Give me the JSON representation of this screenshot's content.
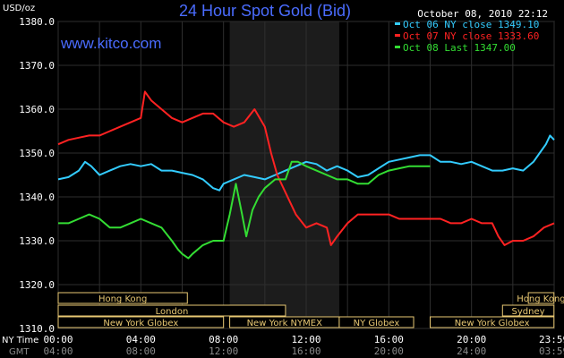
{
  "header": {
    "title": "24 Hour Spot Gold (Bid)",
    "brand": "www.kitco.com",
    "unit": "USD/oz",
    "datetime": "October 08, 2010 22:12"
  },
  "axis": {
    "time_label_ny": "NY Time",
    "time_label_gmt": "GMT"
  },
  "markets": [
    {
      "name": "Hong Kong",
      "row": 0,
      "start": 0.0,
      "end": 6.25
    },
    {
      "name": "Hong Kong",
      "row": 0,
      "start": 22.75,
      "end": 23.99
    },
    {
      "name": "London",
      "row": 1,
      "start": 0.0,
      "end": 11.0
    },
    {
      "name": "Sydney",
      "row": 1,
      "start": 21.5,
      "end": 23.99
    },
    {
      "name": "New York Globex",
      "row": 2,
      "start": 0.0,
      "end": 8.0
    },
    {
      "name": "New York NYMEX",
      "row": 2,
      "start": 8.3,
      "end": 13.6
    },
    {
      "name": "NY Globex",
      "row": 2,
      "start": 13.6,
      "end": 17.2
    },
    {
      "name": "New York Globex",
      "row": 2,
      "start": 18.0,
      "end": 23.99
    }
  ],
  "chart_data": {
    "type": "line",
    "title": "24 Hour Spot Gold (Bid)",
    "ylabel": "USD/oz",
    "ylim": [
      1310,
      1380
    ],
    "xlim": [
      0,
      24
    ],
    "y_ticks": [
      "1310.0",
      "1320.0",
      "1330.0",
      "1340.0",
      "1350.0",
      "1360.0",
      "1370.0",
      "1380.0"
    ],
    "y_tick_values": [
      1310,
      1320,
      1330,
      1340,
      1350,
      1360,
      1370,
      1380
    ],
    "x_ticks_ny": [
      "00:00",
      "04:00",
      "08:00",
      "12:00",
      "16:00",
      "20:00",
      "23:59"
    ],
    "x_ticks_gmt": [
      "04:00",
      "08:00",
      "12:00",
      "16:00",
      "20:00",
      "24:00",
      "03:59"
    ],
    "x_tick_values": [
      0,
      4,
      8,
      12,
      16,
      20,
      23.98
    ],
    "shaded_region": [
      8.3,
      13.6
    ],
    "grid": true,
    "legend_position": "top-right",
    "series": [
      {
        "name": "Oct 06 NY close 1349.10",
        "color": "#33ccff",
        "points": [
          [
            0,
            1344
          ],
          [
            0.5,
            1344.5
          ],
          [
            1.0,
            1346
          ],
          [
            1.3,
            1348
          ],
          [
            1.6,
            1347
          ],
          [
            2.0,
            1345
          ],
          [
            2.5,
            1346
          ],
          [
            3.0,
            1347
          ],
          [
            3.5,
            1347.5
          ],
          [
            4.0,
            1347
          ],
          [
            4.5,
            1347.5
          ],
          [
            5.0,
            1346
          ],
          [
            5.5,
            1346
          ],
          [
            6.0,
            1345.5
          ],
          [
            6.5,
            1345
          ],
          [
            7.0,
            1344
          ],
          [
            7.5,
            1342
          ],
          [
            7.8,
            1341.5
          ],
          [
            8.0,
            1343
          ],
          [
            8.5,
            1344
          ],
          [
            9.0,
            1345
          ],
          [
            9.5,
            1344.5
          ],
          [
            10.0,
            1344
          ],
          [
            10.5,
            1345
          ],
          [
            11.0,
            1346
          ],
          [
            11.5,
            1347
          ],
          [
            12.0,
            1348
          ],
          [
            12.5,
            1347.5
          ],
          [
            13.0,
            1346
          ],
          [
            13.5,
            1347
          ],
          [
            14.0,
            1346
          ],
          [
            14.5,
            1344.5
          ],
          [
            15.0,
            1345
          ],
          [
            15.5,
            1346.5
          ],
          [
            16.0,
            1348
          ],
          [
            16.5,
            1348.5
          ],
          [
            17.0,
            1349
          ],
          [
            17.5,
            1349.5
          ],
          [
            18.0,
            1349.5
          ],
          [
            18.5,
            1348
          ],
          [
            19.0,
            1348
          ],
          [
            19.5,
            1347.5
          ],
          [
            20.0,
            1348
          ],
          [
            20.5,
            1347
          ],
          [
            21.0,
            1346
          ],
          [
            21.5,
            1346
          ],
          [
            22.0,
            1346.5
          ],
          [
            22.5,
            1346
          ],
          [
            23.0,
            1348
          ],
          [
            23.3,
            1350
          ],
          [
            23.6,
            1352
          ],
          [
            23.8,
            1354
          ],
          [
            24.0,
            1353
          ]
        ]
      },
      {
        "name": "Oct 07 NY close 1333.60",
        "color": "#ff2222",
        "points": [
          [
            0,
            1352
          ],
          [
            0.5,
            1353
          ],
          [
            1.0,
            1353.5
          ],
          [
            1.5,
            1354
          ],
          [
            2.0,
            1354
          ],
          [
            2.5,
            1355
          ],
          [
            3.0,
            1356
          ],
          [
            3.5,
            1357
          ],
          [
            4.0,
            1358
          ],
          [
            4.2,
            1364
          ],
          [
            4.5,
            1362
          ],
          [
            5.0,
            1360
          ],
          [
            5.5,
            1358
          ],
          [
            6.0,
            1357
          ],
          [
            6.5,
            1358
          ],
          [
            7.0,
            1359
          ],
          [
            7.5,
            1359
          ],
          [
            8.0,
            1357
          ],
          [
            8.5,
            1356
          ],
          [
            9.0,
            1357
          ],
          [
            9.5,
            1360
          ],
          [
            10.0,
            1356
          ],
          [
            10.3,
            1350
          ],
          [
            10.6,
            1345
          ],
          [
            11.0,
            1341
          ],
          [
            11.5,
            1336
          ],
          [
            12.0,
            1333
          ],
          [
            12.5,
            1334
          ],
          [
            13.0,
            1333
          ],
          [
            13.2,
            1329
          ],
          [
            13.5,
            1331
          ],
          [
            14.0,
            1334
          ],
          [
            14.5,
            1336
          ],
          [
            15.0,
            1336
          ],
          [
            15.5,
            1336
          ],
          [
            16.0,
            1336
          ],
          [
            16.5,
            1335
          ],
          [
            17.0,
            1335
          ],
          [
            17.5,
            1335
          ],
          [
            18.0,
            1335
          ],
          [
            18.5,
            1335
          ],
          [
            19.0,
            1334
          ],
          [
            19.5,
            1334
          ],
          [
            20.0,
            1335
          ],
          [
            20.5,
            1334
          ],
          [
            21.0,
            1334
          ],
          [
            21.3,
            1331
          ],
          [
            21.6,
            1329
          ],
          [
            22.0,
            1330
          ],
          [
            22.5,
            1330
          ],
          [
            23.0,
            1331
          ],
          [
            23.5,
            1333
          ],
          [
            24.0,
            1334
          ]
        ]
      },
      {
        "name": "Oct 08 Last 1347.00",
        "color": "#33dd33",
        "points": [
          [
            0,
            1334
          ],
          [
            0.5,
            1334
          ],
          [
            1.0,
            1335
          ],
          [
            1.5,
            1336
          ],
          [
            2.0,
            1335
          ],
          [
            2.5,
            1333
          ],
          [
            3.0,
            1333
          ],
          [
            3.5,
            1334
          ],
          [
            4.0,
            1335
          ],
          [
            4.5,
            1334
          ],
          [
            5.0,
            1333
          ],
          [
            5.5,
            1330
          ],
          [
            5.8,
            1328
          ],
          [
            6.0,
            1327
          ],
          [
            6.3,
            1326
          ],
          [
            6.5,
            1327
          ],
          [
            7.0,
            1329
          ],
          [
            7.5,
            1330
          ],
          [
            8.0,
            1330
          ],
          [
            8.3,
            1336
          ],
          [
            8.6,
            1343
          ],
          [
            8.9,
            1336
          ],
          [
            9.1,
            1331
          ],
          [
            9.4,
            1337
          ],
          [
            9.7,
            1340
          ],
          [
            10.0,
            1342
          ],
          [
            10.5,
            1344
          ],
          [
            11.0,
            1344
          ],
          [
            11.3,
            1348
          ],
          [
            11.6,
            1348
          ],
          [
            12.0,
            1347
          ],
          [
            12.5,
            1346
          ],
          [
            13.0,
            1345
          ],
          [
            13.5,
            1344
          ],
          [
            14.0,
            1344
          ],
          [
            14.5,
            1343
          ],
          [
            15.0,
            1343
          ],
          [
            15.5,
            1345
          ],
          [
            16.0,
            1346
          ],
          [
            16.5,
            1346.5
          ],
          [
            17.0,
            1347
          ],
          [
            17.5,
            1347
          ],
          [
            18.0,
            1347
          ]
        ]
      }
    ]
  }
}
